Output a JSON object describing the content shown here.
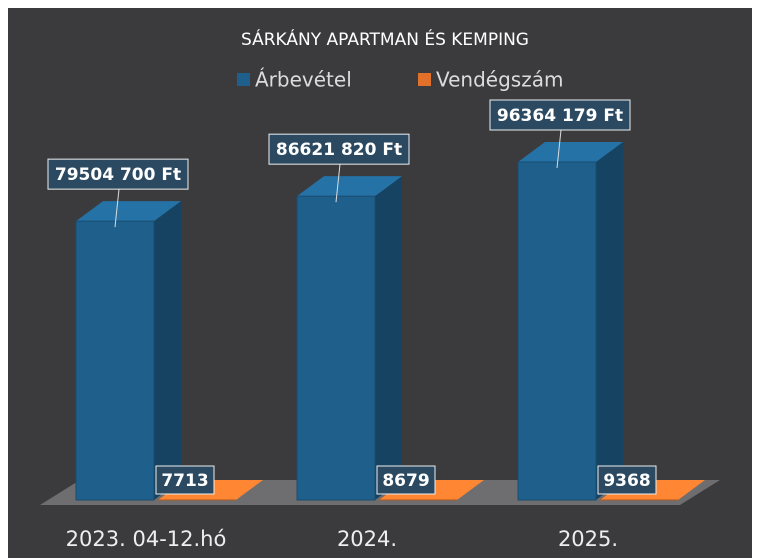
{
  "chart_data": {
    "type": "bar3d",
    "title": "SÁRKÁNY APARTMAN ÉS KEMPING",
    "categories": [
      "2023. 04-12.hó",
      "2024.",
      "2025."
    ],
    "series": [
      {
        "name": "Árbevétel",
        "color": "#1f5f8b",
        "values": [
          79504700,
          86621820,
          96364179
        ],
        "value_labels": [
          "79504 700 Ft",
          "86621 820 Ft",
          "96364 179 Ft"
        ]
      },
      {
        "name": "Vendégszám",
        "color": "#e0702a",
        "values": [
          7713,
          8679,
          9368
        ]
      }
    ]
  }
}
